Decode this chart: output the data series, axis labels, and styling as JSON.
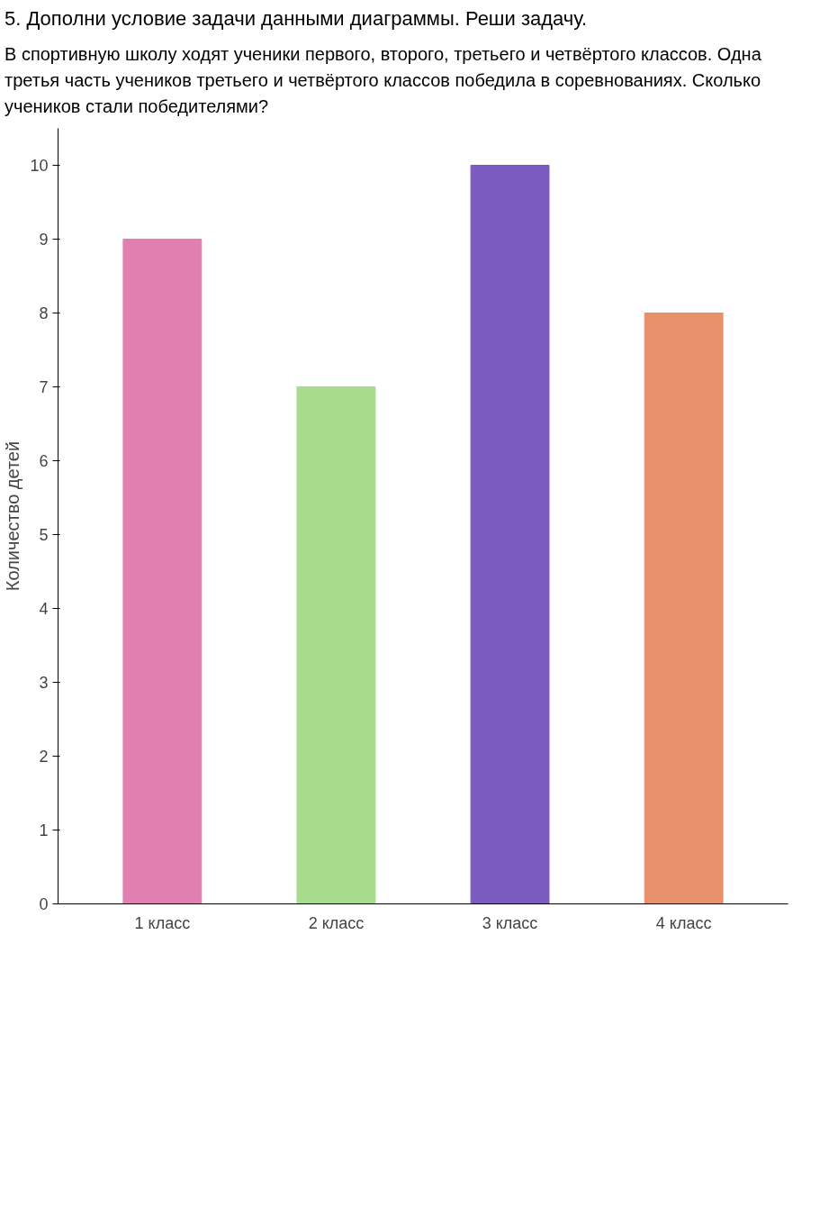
{
  "chart_data": {
    "type": "bar",
    "title": "5. Дополни условие задачи данными диаграммы. Реши задачу.",
    "annotations": [
      "В спортивную школу ходят ученики первого, второго, третьего и четвёртого классов. Одна третья часть учеников третьего и четвёртого классов победила в соревнованиях. Сколько учеников стали победителями?"
    ],
    "ylabel": "Количество детей",
    "categories": [
      "1 класс",
      "2 класс",
      "3 класс",
      "4 класс"
    ],
    "values": [
      9,
      7,
      10,
      8
    ],
    "colors": [
      "#e07fb0",
      "#a8dc8c",
      "#7a5cc0",
      "#e8906c"
    ],
    "ylim": [
      0,
      10.5
    ],
    "yticks": [
      0,
      1,
      2,
      3,
      4,
      5,
      6,
      7,
      8,
      9,
      10
    ],
    "grid": false
  }
}
